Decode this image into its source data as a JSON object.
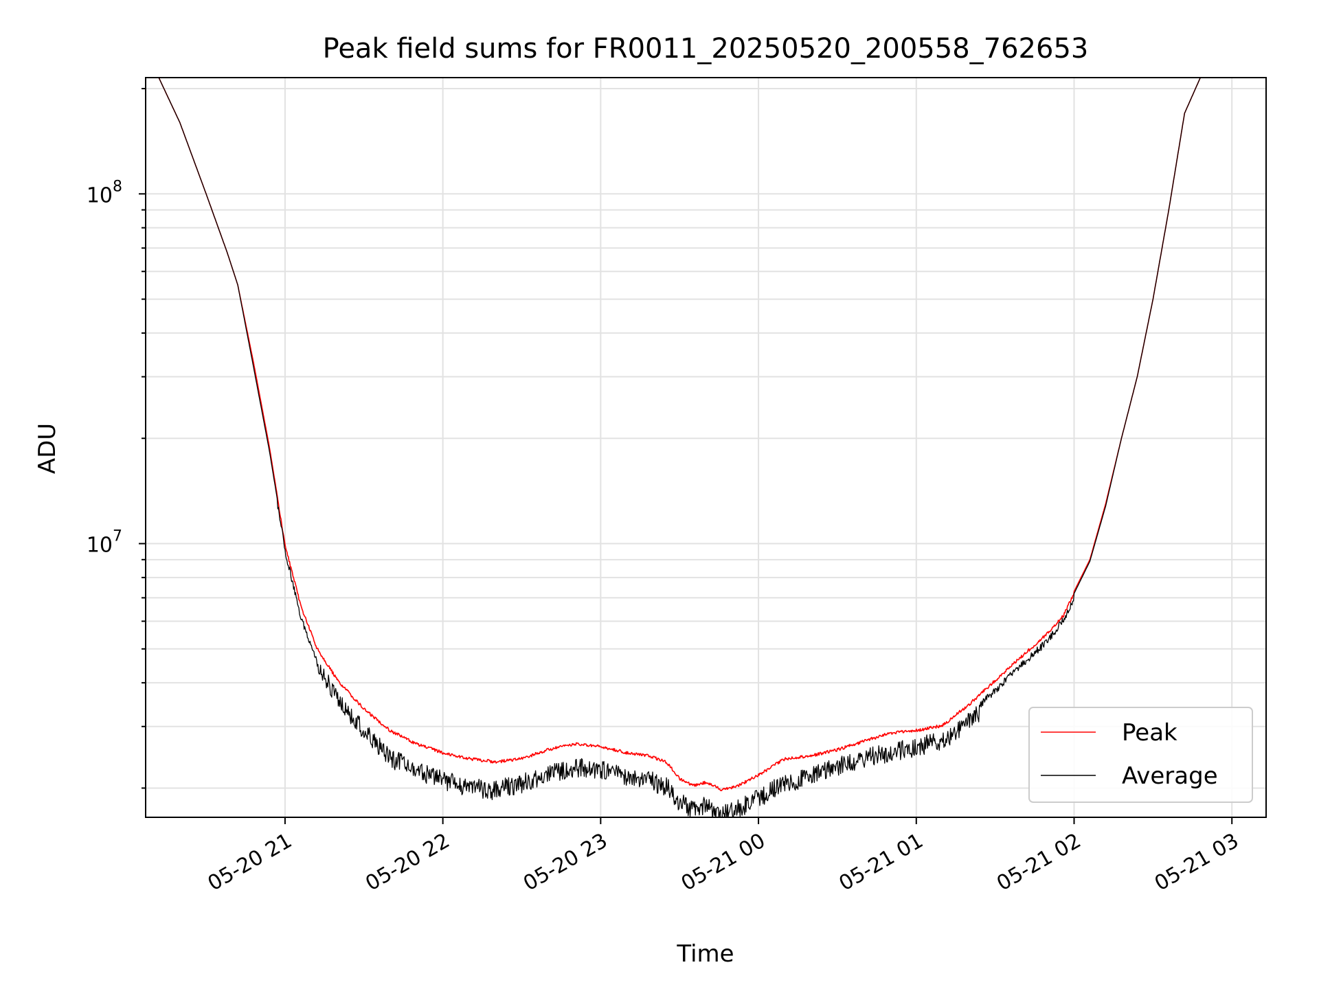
{
  "chart_data": {
    "type": "line",
    "title": "Peak field sums for FR0011_20250520_200558_762653",
    "xlabel": "Time",
    "ylabel": "ADU",
    "y_scale": "log",
    "grid": "major and minor",
    "legend_placement": "lower-right",
    "x_ticks": [
      "05-20 21",
      "05-20 22",
      "05-20 23",
      "05-21 00",
      "05-21 01",
      "05-21 02",
      "05-21 03"
    ],
    "y_ticks": [
      {
        "value": 10000000,
        "base": "10",
        "exp": "7"
      },
      {
        "value": 100000000,
        "base": "10",
        "exp": "8"
      }
    ],
    "xlim": [
      "2025-05-20 20:07",
      "2025-05-21 03:13"
    ],
    "ylim": [
      1650000,
      215000000
    ],
    "series": [
      {
        "name": "Peak",
        "color": "#ff0000",
        "x": [
          "2025-05-20 20:12",
          "2025-05-20 20:20",
          "2025-05-20 20:30",
          "2025-05-20 20:38",
          "2025-05-20 20:42",
          "2025-05-20 20:48",
          "2025-05-20 20:54",
          "2025-05-20 21:00",
          "2025-05-20 21:06",
          "2025-05-20 21:12",
          "2025-05-20 21:20",
          "2025-05-20 21:30",
          "2025-05-20 21:40",
          "2025-05-20 21:50",
          "2025-05-20 22:00",
          "2025-05-20 22:10",
          "2025-05-20 22:20",
          "2025-05-20 22:30",
          "2025-05-20 22:40",
          "2025-05-20 22:50",
          "2025-05-20 23:00",
          "2025-05-20 23:10",
          "2025-05-20 23:18",
          "2025-05-20 23:25",
          "2025-05-20 23:30",
          "2025-05-20 23:35",
          "2025-05-20 23:40",
          "2025-05-20 23:46",
          "2025-05-20 23:52",
          "2025-05-21 00:00",
          "2025-05-21 00:10",
          "2025-05-21 00:20",
          "2025-05-21 00:30",
          "2025-05-21 00:40",
          "2025-05-21 00:50",
          "2025-05-21 01:00",
          "2025-05-21 01:10",
          "2025-05-21 01:20",
          "2025-05-21 01:30",
          "2025-05-21 01:40",
          "2025-05-21 01:50",
          "2025-05-21 01:56",
          "2025-05-21 02:00",
          "2025-05-21 02:06",
          "2025-05-21 02:12",
          "2025-05-21 02:18",
          "2025-05-21 02:24",
          "2025-05-21 02:30",
          "2025-05-21 02:36",
          "2025-05-21 02:42",
          "2025-05-21 02:48"
        ],
        "values": [
          215000000,
          160000000,
          100000000,
          68000000,
          55000000,
          33000000,
          19000000,
          10000000,
          6700000,
          5100000,
          4100000,
          3400000,
          2950000,
          2700000,
          2550000,
          2450000,
          2400000,
          2450000,
          2600000,
          2700000,
          2650000,
          2550000,
          2500000,
          2400000,
          2150000,
          2050000,
          2100000,
          2000000,
          2050000,
          2200000,
          2450000,
          2500000,
          2600000,
          2750000,
          2900000,
          2950000,
          3050000,
          3500000,
          4100000,
          4800000,
          5600000,
          6300000,
          7300000,
          9000000,
          13000000,
          20000000,
          30000000,
          50000000,
          90000000,
          170000000,
          215000000
        ]
      },
      {
        "name": "Average",
        "color": "#000000",
        "x": [
          "2025-05-20 20:12",
          "2025-05-20 20:20",
          "2025-05-20 20:30",
          "2025-05-20 20:38",
          "2025-05-20 20:42",
          "2025-05-20 20:48",
          "2025-05-20 20:54",
          "2025-05-20 21:00",
          "2025-05-20 21:06",
          "2025-05-20 21:12",
          "2025-05-20 21:20",
          "2025-05-20 21:30",
          "2025-05-20 21:40",
          "2025-05-20 21:50",
          "2025-05-20 22:00",
          "2025-05-20 22:10",
          "2025-05-20 22:20",
          "2025-05-20 22:30",
          "2025-05-20 22:40",
          "2025-05-20 22:50",
          "2025-05-20 23:00",
          "2025-05-20 23:10",
          "2025-05-20 23:18",
          "2025-05-20 23:25",
          "2025-05-20 23:30",
          "2025-05-20 23:35",
          "2025-05-20 23:40",
          "2025-05-20 23:46",
          "2025-05-20 23:52",
          "2025-05-21 00:00",
          "2025-05-21 00:10",
          "2025-05-21 00:20",
          "2025-05-21 00:30",
          "2025-05-21 00:40",
          "2025-05-21 00:50",
          "2025-05-21 01:00",
          "2025-05-21 01:10",
          "2025-05-21 01:20",
          "2025-05-21 01:30",
          "2025-05-21 01:40",
          "2025-05-21 01:50",
          "2025-05-21 01:56",
          "2025-05-21 02:00",
          "2025-05-21 02:06",
          "2025-05-21 02:12",
          "2025-05-21 02:18",
          "2025-05-21 02:24",
          "2025-05-21 02:30",
          "2025-05-21 02:36",
          "2025-05-21 02:42",
          "2025-05-21 02:48"
        ],
        "values": [
          215000000,
          160000000,
          100000000,
          68000000,
          55000000,
          32000000,
          18500000,
          9800000,
          6300000,
          4800000,
          3800000,
          3100000,
          2600000,
          2400000,
          2250000,
          2150000,
          2100000,
          2200000,
          2350000,
          2450000,
          2400000,
          2300000,
          2250000,
          2150000,
          1950000,
          1850000,
          1900000,
          1800000,
          1850000,
          2000000,
          2200000,
          2300000,
          2450000,
          2600000,
          2700000,
          2800000,
          2900000,
          3300000,
          3900000,
          4600000,
          5400000,
          6200000,
          7200000,
          8900000,
          12800000,
          20000000,
          30000000,
          50000000,
          90000000,
          170000000,
          215000000
        ]
      }
    ]
  }
}
